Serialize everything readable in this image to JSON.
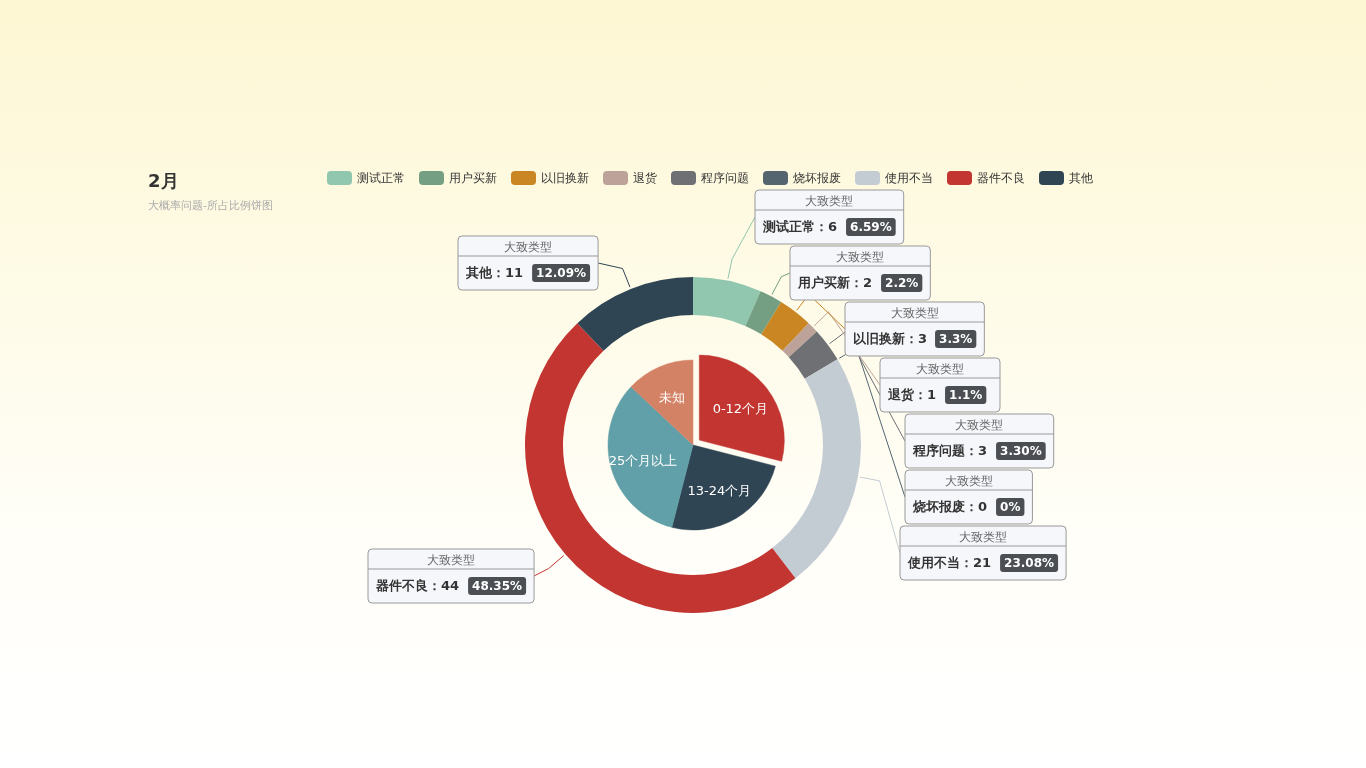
{
  "chart_data": [
    {
      "type": "donut",
      "title": "2月",
      "subtitle": "大概率问题-所占比例饼图",
      "legend": "top",
      "annotations": [
        "大致类型"
      ],
      "categories": [
        "测试正常",
        "用户买新",
        "以旧换新",
        "退货",
        "程序问题",
        "烧坏报废",
        "使用不当",
        "器件不良",
        "其他"
      ],
      "values": [
        6,
        2,
        3,
        1,
        3,
        0,
        21,
        44,
        11
      ],
      "value_labels": [
        "测试正常：6 6.59%",
        "用户买新：2 2.2%",
        "以旧换新：3 3.3%",
        "退货：1 1.1%",
        "程序问题：3 3.30%",
        "烧坏报废：0 0%",
        "使用不当：21 23.08%",
        "器件不良：44 48.35%",
        "其他：11 12.09%"
      ],
      "colors": [
        "#91c7ae",
        "#749f83",
        "#ca8622",
        "#bda29a",
        "#6e7074",
        "#546570",
        "#c4ccd3",
        "#c23531",
        "#2f4554"
      ]
    },
    {
      "type": "pie",
      "categories": [
        "0-12个月",
        "13-24个月",
        "25个月以上",
        "未知"
      ],
      "values": [
        29,
        25,
        33,
        13
      ],
      "colors": [
        "#c23531",
        "#2f4554",
        "#61a0a8",
        "#d48265"
      ]
    }
  ]
}
